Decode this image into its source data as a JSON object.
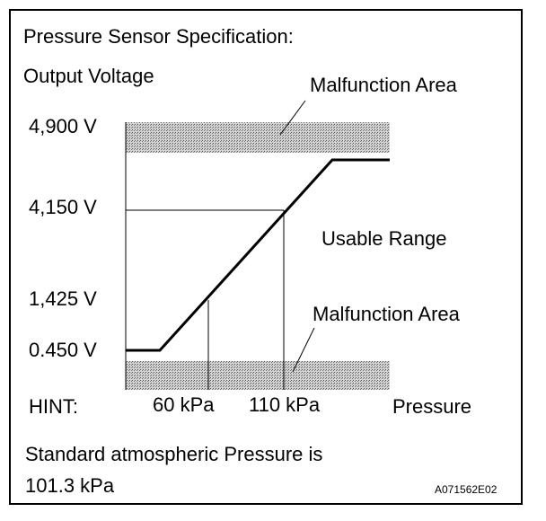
{
  "heading": "Pressure Sensor Specification:",
  "y_axis_label": "Output Voltage",
  "x_axis_label": "Pressure",
  "malfunction_upper_label": "Malfunction Area",
  "malfunction_lower_label": "Malfunction Area",
  "usable_range_label": "Usable Range",
  "hint_label": "HINT:",
  "note_line1": "Standard atmospheric Pressure is",
  "note_line2": "101.3 kPa",
  "figure_code": "A071562E02",
  "colors": {
    "band_fill": "#cfcfcf",
    "band_dots": "#555555",
    "line": "#000000"
  },
  "chart_data": {
    "type": "line",
    "y_ticks": [
      "4,900 V",
      "4,150 V",
      "1,425 V",
      "0.450 V"
    ],
    "x_ticks": [
      "60 kPa",
      "110 kPa"
    ],
    "series": [
      {
        "x": [
          "0",
          "60 kPa",
          "110 kPa",
          "max"
        ],
        "y": [
          0.45,
          1.425,
          4.15,
          4.65
        ]
      }
    ],
    "bands": [
      "upper malfunction area",
      "lower malfunction area"
    ]
  }
}
